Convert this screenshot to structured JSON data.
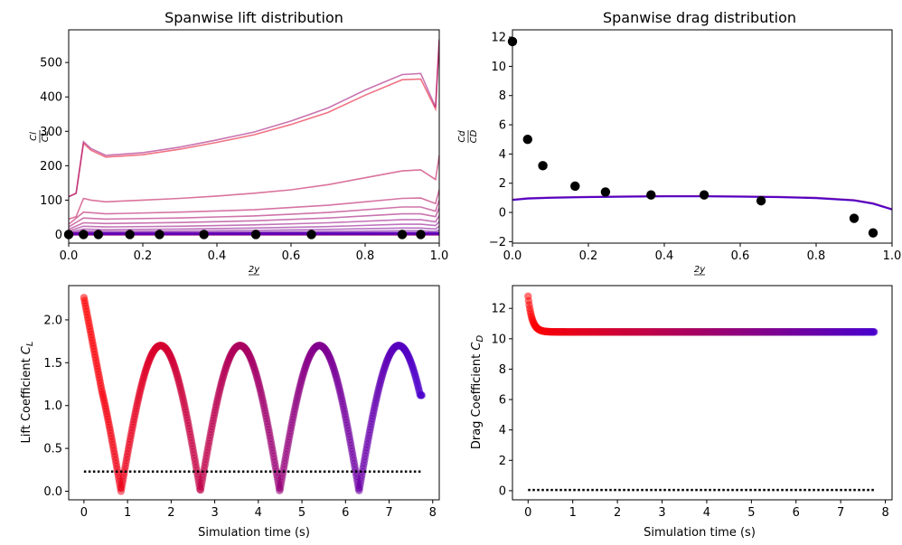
{
  "colors": {
    "start": "#ff0000",
    "end": "#4b00cc",
    "marker": "#000000",
    "reference": "#000000"
  },
  "chart_data": [
    {
      "id": "lift-dist",
      "type": "line",
      "title": "Spanwise lift distribution",
      "xlabel": "2y/b",
      "ylabel": "Cl/CL",
      "xlim": [
        0,
        1
      ],
      "ylim": [
        -25,
        595
      ],
      "xticks": [
        0,
        0.2,
        0.4,
        0.6,
        0.8,
        1.0
      ],
      "xtick_labels": [
        "0.0",
        "0.2",
        "0.4",
        "0.6",
        "0.8",
        "1.0"
      ],
      "yticks": [
        0,
        100,
        200,
        300,
        400,
        500
      ],
      "ytick_labels": [
        "0",
        "100",
        "200",
        "300",
        "400",
        "500"
      ],
      "grid": false,
      "series": [
        {
          "values": [
            [
              0,
              110
            ],
            [
              0.02,
              120
            ],
            [
              0.04,
              265
            ],
            [
              0.06,
              245
            ],
            [
              0.1,
              225
            ],
            [
              0.2,
              232
            ],
            [
              0.3,
              248
            ],
            [
              0.4,
              268
            ],
            [
              0.5,
              290
            ],
            [
              0.6,
              320
            ],
            [
              0.7,
              355
            ],
            [
              0.8,
              405
            ],
            [
              0.9,
              450
            ],
            [
              0.95,
              452
            ],
            [
              0.99,
              365
            ],
            [
              1.0,
              565
            ]
          ]
        },
        {
          "values": [
            [
              0,
              110
            ],
            [
              0.02,
              120
            ],
            [
              0.04,
              270
            ],
            [
              0.06,
              250
            ],
            [
              0.1,
              230
            ],
            [
              0.2,
              238
            ],
            [
              0.3,
              254
            ],
            [
              0.4,
              275
            ],
            [
              0.5,
              298
            ],
            [
              0.6,
              330
            ],
            [
              0.7,
              368
            ],
            [
              0.8,
              420
            ],
            [
              0.9,
              465
            ],
            [
              0.95,
              468
            ],
            [
              0.99,
              370
            ],
            [
              1.0,
              568
            ]
          ]
        },
        {
          "values": [
            [
              0,
              45
            ],
            [
              0.02,
              52
            ],
            [
              0.04,
              105
            ],
            [
              0.06,
              100
            ],
            [
              0.1,
              95
            ],
            [
              0.2,
              100
            ],
            [
              0.3,
              105
            ],
            [
              0.4,
              112
            ],
            [
              0.5,
              120
            ],
            [
              0.6,
              130
            ],
            [
              0.7,
              145
            ],
            [
              0.8,
              165
            ],
            [
              0.9,
              185
            ],
            [
              0.95,
              188
            ],
            [
              0.99,
              160
            ],
            [
              1.0,
              230
            ]
          ]
        },
        {
          "values": [
            [
              0,
              30
            ],
            [
              0.04,
              65
            ],
            [
              0.1,
              60
            ],
            [
              0.3,
              65
            ],
            [
              0.5,
              72
            ],
            [
              0.7,
              85
            ],
            [
              0.9,
              105
            ],
            [
              0.95,
              106
            ],
            [
              0.99,
              90
            ],
            [
              1.0,
              130
            ]
          ]
        },
        {
          "values": [
            [
              0,
              22
            ],
            [
              0.04,
              48
            ],
            [
              0.1,
              45
            ],
            [
              0.3,
              48
            ],
            [
              0.5,
              54
            ],
            [
              0.7,
              64
            ],
            [
              0.9,
              80
            ],
            [
              0.95,
              80
            ],
            [
              0.99,
              68
            ],
            [
              1.0,
              100
            ]
          ]
        },
        {
          "values": [
            [
              0,
              15
            ],
            [
              0.04,
              34
            ],
            [
              0.1,
              32
            ],
            [
              0.3,
              35
            ],
            [
              0.5,
              40
            ],
            [
              0.7,
              48
            ],
            [
              0.9,
              60
            ],
            [
              0.95,
              60
            ],
            [
              0.99,
              52
            ],
            [
              1.0,
              78
            ]
          ]
        },
        {
          "values": [
            [
              0,
              10
            ],
            [
              0.04,
              24
            ],
            [
              0.1,
              22
            ],
            [
              0.3,
              24
            ],
            [
              0.5,
              28
            ],
            [
              0.7,
              34
            ],
            [
              0.9,
              43
            ],
            [
              0.95,
              43
            ],
            [
              0.99,
              37
            ],
            [
              1.0,
              55
            ]
          ]
        },
        {
          "values": [
            [
              0,
              6
            ],
            [
              0.04,
              16
            ],
            [
              0.1,
              14
            ],
            [
              0.3,
              16
            ],
            [
              0.5,
              19
            ],
            [
              0.7,
              23
            ],
            [
              0.9,
              30
            ],
            [
              0.95,
              30
            ],
            [
              0.99,
              26
            ],
            [
              1.0,
              38
            ]
          ]
        },
        {
          "values": [
            [
              0,
              4
            ],
            [
              0.04,
              10
            ],
            [
              0.1,
              9
            ],
            [
              0.3,
              10
            ],
            [
              0.5,
              12
            ],
            [
              0.7,
              15
            ],
            [
              0.9,
              19
            ],
            [
              0.95,
              19
            ],
            [
              0.99,
              16
            ],
            [
              1.0,
              24
            ]
          ]
        },
        {
          "values": [
            [
              0,
              2
            ],
            [
              0.04,
              6
            ],
            [
              0.1,
              5
            ],
            [
              0.3,
              6
            ],
            [
              0.5,
              7
            ],
            [
              0.7,
              9
            ],
            [
              0.9,
              11
            ],
            [
              0.95,
              11
            ],
            [
              0.99,
              9
            ],
            [
              1.0,
              14
            ]
          ]
        },
        {
          "values": [
            [
              0,
              1
            ],
            [
              0.04,
              3
            ],
            [
              0.1,
              3
            ],
            [
              0.3,
              3
            ],
            [
              0.5,
              4
            ],
            [
              0.7,
              5
            ],
            [
              0.9,
              6
            ],
            [
              0.95,
              6
            ],
            [
              0.99,
              5
            ],
            [
              1.0,
              8
            ]
          ]
        },
        {
          "values": [
            [
              0,
              0
            ],
            [
              0.04,
              1
            ],
            [
              0.1,
              1
            ],
            [
              0.3,
              1
            ],
            [
              0.5,
              1
            ],
            [
              0.7,
              2
            ],
            [
              0.9,
              2
            ],
            [
              0.95,
              2
            ],
            [
              0.99,
              2
            ],
            [
              1.0,
              3
            ]
          ]
        }
      ],
      "points": [
        [
          0,
          0
        ],
        [
          0.04,
          0
        ],
        [
          0.08,
          0
        ],
        [
          0.165,
          0
        ],
        [
          0.245,
          0
        ],
        [
          0.365,
          0
        ],
        [
          0.505,
          0
        ],
        [
          0.655,
          0
        ],
        [
          0.9,
          0
        ],
        [
          0.95,
          0
        ]
      ]
    },
    {
      "id": "drag-dist",
      "type": "line",
      "title": "Spanwise drag distribution",
      "xlabel": "2y/b",
      "ylabel": "Cd/CD",
      "xlim": [
        0,
        1
      ],
      "ylim": [
        -2.1,
        12.5
      ],
      "xticks": [
        0,
        0.2,
        0.4,
        0.6,
        0.8,
        1.0
      ],
      "xtick_labels": [
        "0.0",
        "0.2",
        "0.4",
        "0.6",
        "0.8",
        "1.0"
      ],
      "yticks": [
        -2,
        0,
        2,
        4,
        6,
        8,
        10,
        12
      ],
      "ytick_labels": [
        "−2",
        "0",
        "2",
        "4",
        "6",
        "8",
        "10",
        "12"
      ],
      "grid": false,
      "series": [
        {
          "values": [
            [
              0,
              0.85
            ],
            [
              0.02,
              0.9
            ],
            [
              0.04,
              0.95
            ],
            [
              0.1,
              1.0
            ],
            [
              0.2,
              1.05
            ],
            [
              0.3,
              1.08
            ],
            [
              0.4,
              1.1
            ],
            [
              0.5,
              1.1
            ],
            [
              0.6,
              1.08
            ],
            [
              0.7,
              1.05
            ],
            [
              0.8,
              0.98
            ],
            [
              0.9,
              0.82
            ],
            [
              0.95,
              0.6
            ],
            [
              1.0,
              0.2
            ]
          ]
        }
      ],
      "points": [
        [
          0,
          11.7
        ],
        [
          0.04,
          5.0
        ],
        [
          0.08,
          3.2
        ],
        [
          0.165,
          1.8
        ],
        [
          0.245,
          1.4
        ],
        [
          0.365,
          1.2
        ],
        [
          0.505,
          1.2
        ],
        [
          0.655,
          0.8
        ],
        [
          0.9,
          -0.4
        ],
        [
          0.95,
          -1.4
        ]
      ]
    },
    {
      "id": "lift-time",
      "type": "scatter",
      "title": "",
      "xlabel": "Simulation time (s)",
      "ylabel": "Lift Coefficient C_L",
      "ylabel_main": "Lift Coefficient ",
      "ylabel_sub": "L",
      "xlim": [
        -0.35,
        8.15
      ],
      "ylim": [
        -0.1,
        2.4
      ],
      "xticks": [
        0,
        1,
        2,
        3,
        4,
        5,
        6,
        7,
        8
      ],
      "xtick_labels": [
        "0",
        "1",
        "2",
        "3",
        "4",
        "5",
        "6",
        "7",
        "8"
      ],
      "yticks": [
        0,
        0.5,
        1.0,
        1.5,
        2.0
      ],
      "ytick_labels": [
        "0.0",
        "0.5",
        "1.0",
        "1.5",
        "2.0"
      ],
      "grid": false,
      "t_end": 7.75,
      "peak": 1.7,
      "period": 1.82,
      "min_times": [
        0.85,
        2.67,
        4.49,
        6.31
      ],
      "start_value": 2.26,
      "end_value": 1.12,
      "reference": {
        "value": 0.23,
        "x": [
          0,
          7.75
        ]
      }
    },
    {
      "id": "drag-time",
      "type": "scatter",
      "title": "",
      "xlabel": "Simulation time (s)",
      "ylabel": "Drag Coefficient C_D",
      "ylabel_main": "Drag Coefficient ",
      "ylabel_sub": "D",
      "xlim": [
        -0.35,
        8.15
      ],
      "ylim": [
        -0.6,
        13.5
      ],
      "xticks": [
        0,
        1,
        2,
        3,
        4,
        5,
        6,
        7,
        8
      ],
      "xtick_labels": [
        "0",
        "1",
        "2",
        "3",
        "4",
        "5",
        "6",
        "7",
        "8"
      ],
      "yticks": [
        0,
        2,
        4,
        6,
        8,
        10,
        12
      ],
      "ytick_labels": [
        "0",
        "2",
        "4",
        "6",
        "8",
        "10",
        "12"
      ],
      "grid": false,
      "t_end": 7.75,
      "start_value": 12.8,
      "steady_value": 10.45,
      "reference": {
        "value": 0.05,
        "x": [
          0,
          7.75
        ]
      }
    }
  ]
}
